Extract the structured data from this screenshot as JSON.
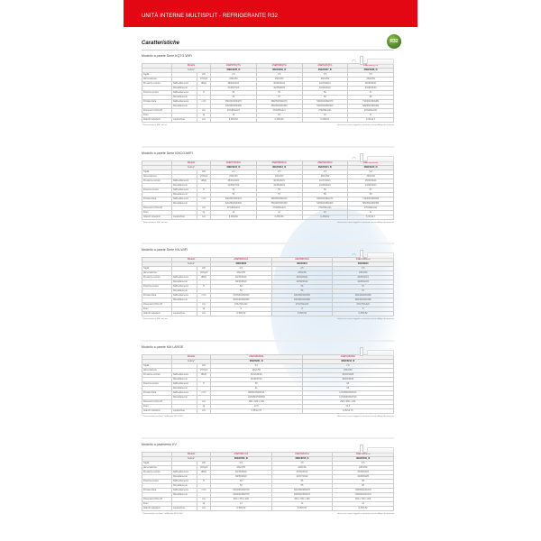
{
  "banner": {
    "title": "UNITÀ INTERNE MULTISPLIT - REFRIGERANTE R32"
  },
  "heading": "Caratteristiche",
  "badge": "R32",
  "labels": {
    "modello": "Modello",
    "codice": "Codice*",
    "note_right": "I dati tecnici sono soggetti a variazioni senza obbligo di preavviso"
  },
  "rows": [
    {
      "label": "Taglia",
      "sub": "",
      "unit2": "",
      "unit": "kW"
    },
    {
      "label": "Alimentazione",
      "sub": "",
      "unit2": "",
      "unit": "V/Hz/ph"
    },
    {
      "label": "Pressione sonora",
      "sub": "Raffreddamento",
      "unit2": "H/M/L/Q",
      "unit": "dB(A)"
    },
    {
      "label": "",
      "sub": "Riscaldamento",
      "unit2": "",
      "unit": ""
    },
    {
      "label": "Potenza sonora",
      "sub": "Raffreddamento",
      "unit2": "H",
      "unit": ""
    },
    {
      "label": "",
      "sub": "Riscaldamento",
      "unit2": "",
      "unit": ""
    },
    {
      "label": "Portata d'aria",
      "sub": "Raffreddamento",
      "unit2": "H/M/L/Q",
      "unit": "m³/h"
    },
    {
      "label": "",
      "sub": "Riscaldamento",
      "unit2": "",
      "unit": ""
    },
    {
      "label": "Dimensioni (HxLxP)",
      "sub": "",
      "unit2": "",
      "unit": "mm"
    },
    {
      "label": "Peso",
      "sub": "",
      "unit2": "",
      "unit": "kg"
    },
    {
      "label": "Attacchi tubazioni",
      "sub": "Liquido/Gas",
      "unit2": "",
      "unit": "mm"
    }
  ],
  "sections": [
    {
      "title": "Modello a parete Serie KQTG-WIFI",
      "footnote": "* Telecomando e WiFi inclusi",
      "wifi": true,
      "models": [
        "ASEH07KQTG",
        "ASEH09KQTG",
        "ASEH12KQTG",
        "ASEH18KQTG"
      ],
      "codes": [
        "3NGF8235_I0",
        "3NGF8236_I0",
        "3NGF8237_I0",
        "3NGF8238_I0"
      ],
      "values": [
        [
          "2,0",
          "2,5",
          "3,5",
          "5,0"
        ],
        [
          "230/1/50",
          "230/1/50",
          "230/1/50",
          "230/1/50"
        ],
        [
          "38/33/24/21",
          "40/34/26/21",
          "40/37/30/21",
          "45/38/32/21"
        ],
        [
          "41/35/27/22",
          "42/35/28/22",
          "42/38/32/22",
          "44/38/33/24"
        ],
        [
          "53",
          "55",
          "56",
          "57"
        ],
        [
          "56",
          "57",
          "58",
          "59"
        ],
        [
          "350/340/300/270",
          "380/350/300/270",
          "500/460/360/270",
          "710/600/460/280"
        ],
        [
          "320/360/300/300",
          "350/360/300/300",
          "520/460/380/300",
          "680/560/460/380"
        ],
        [
          "270x894x221",
          "270x894x221",
          "270x894x221",
          "270x894x221"
        ],
        [
          "10",
          "10",
          "10",
          "11"
        ],
        [
          "6,35/9,52",
          "6,35/9,52",
          "6,35/9,52",
          "6,35/12,7"
        ]
      ]
    },
    {
      "title": "Modello a parete Serie KMCG-WIFI",
      "footnote": "* Telecomando e WiFi incluso",
      "wifi": true,
      "models": [
        "ASEH07KMCG",
        "ASEH09KMCG",
        "ASEH12KMCG",
        "ASEH18KMCG"
      ],
      "codes": [
        "3NGF8212_I0",
        "3NGF8213_I0",
        "3NGF8214_I0",
        "3NGF8215_I0"
      ],
      "values": [
        [
          "2,0",
          "2,5",
          "3,5",
          "5,0"
        ],
        [
          "230/1/50",
          "230/1/50",
          "230/1/50",
          "230/1/50"
        ],
        [
          "38/33/24/21",
          "40/34/26/21",
          "40/37/30/21",
          "45/38/32/21"
        ],
        [
          "41/35/27/22",
          "42/35/28/22",
          "42/38/32/22",
          "44/38/33/24"
        ],
        [
          "53",
          "55",
          "56",
          "57"
        ],
        [
          "56",
          "57",
          "58",
          "59"
        ],
        [
          "350/340/300/270",
          "380/350/300/270",
          "500/460/360/270",
          "710/600/460/280"
        ],
        [
          "320/360/300/300",
          "350/360/300/300",
          "520/460/380/300",
          "680/560/460/380"
        ],
        [
          "270x894x221",
          "270x894x221",
          "270x894x221",
          "270x894x221"
        ],
        [
          "10",
          "10",
          "10",
          "11"
        ],
        [
          "6,35/9,52",
          "6,35/9,52",
          "6,35/9,52",
          "6,35/12,7"
        ]
      ]
    },
    {
      "title": "Modello a parete Serie KN-WIFI",
      "footnote": "* Telecomando e WiFi incluso",
      "wifi": true,
      "models": [
        "ASEH09KNCA",
        "ASEH09KNCA",
        "ASEH12KNCA"
      ],
      "codes": [
        "3NGF8900",
        "3NGF8901",
        "3NGF8910"
      ],
      "values": [
        [
          "2,5",
          "2,5",
          "3,5"
        ],
        [
          "230/1/50",
          "230/1/50",
          "230/1/50"
        ],
        [
          "36/32/24/21",
          "40/34/26/21",
          "42/36/32/21"
        ],
        [
          "38/33/26/22",
          "42/36/30/22",
          "42/38/32/22"
        ],
        [
          "52",
          "56",
          "57"
        ],
        [
          "52",
          "56",
          "57"
        ],
        [
          "370/300/260/250",
          "400/360/300/250",
          "450/420/400/280"
        ],
        [
          "400/340/300/280",
          "400/360/320/280",
          "480/420/400/280"
        ],
        [
          "270x794x222",
          "270x794x222",
          "270x794x222"
        ],
        [
          "9",
          "9",
          "9"
        ],
        [
          "6,35/9,52",
          "6,35/9,52",
          "6,35/9,52"
        ]
      ]
    },
    {
      "title": "Modello a parete KM LARGE",
      "footnote": "* Telecomando con linea \"wifiReady\" INCLUSO",
      "wifi": false,
      "models": [
        "ASEH18KMCE",
        "ASEH24KMCE"
      ],
      "codes": [
        "3NGF8241_I0",
        "3NGF8244_I0"
      ],
      "values": [
        [
          "5,0",
          "7,0"
        ],
        [
          "230/1/50",
          "230/1/50"
        ],
        [
          "45/42/33/28",
          "45/40/33/28"
        ],
        [
          "45/40/37/33",
          "45/40/35/30"
        ],
        [
          "58",
          "63"
        ],
        [
          "61",
          "63"
        ],
        [
          "980/810/540/510",
          "1170/850/640/510"
        ],
        [
          "1020/820/540/510",
          "1170/830/640/510"
        ],
        [
          "295 x 960 x 240",
          "295 x 960 x 240"
        ],
        [
          "12,5",
          "12,5"
        ],
        [
          "6,35/12,70",
          "6,35/12,70"
        ]
      ]
    },
    {
      "title": "Modello a pavimento KV",
      "footnote": "* Telecomando con linea \"wifiReady\" INCLUSO",
      "wifi": false,
      "models": [
        "ASEH09KVCA",
        "ASEH12KVCA",
        "ASEH18KVCA"
      ],
      "codes": [
        "3NGF8790_I0",
        "3NGF8795_I0",
        "3NGF8793_I0"
      ],
      "values": [
        [
          "2,5",
          "3,5",
          "4,5"
        ],
        [
          "230/1/50",
          "230/1/50",
          "230/1/50"
        ],
        [
          "36/33/28/22",
          "40/36/30/22",
          "43/38/33/22"
        ],
        [
          "38/35/30/22",
          "42/37/33/22",
          "43/38/33/25"
        ],
        [
          "52",
          "55",
          "58"
        ],
        [
          "52",
          "55",
          "58"
        ],
        [
          "520/460/400/370",
          "600/480/380/270",
          "700/520/440/270"
        ],
        [
          "530/460/380/370",
          "600/540/450/270",
          "700/540/430/270"
        ],
        [
          "600 x 700 x 200",
          "600 x 700 x 200",
          "600 x 700 x 200"
        ],
        [
          "14",
          "14",
          "14"
        ],
        [
          "6,35/9,52",
          "6,35/9,52",
          "6,35/9,52"
        ]
      ]
    }
  ]
}
